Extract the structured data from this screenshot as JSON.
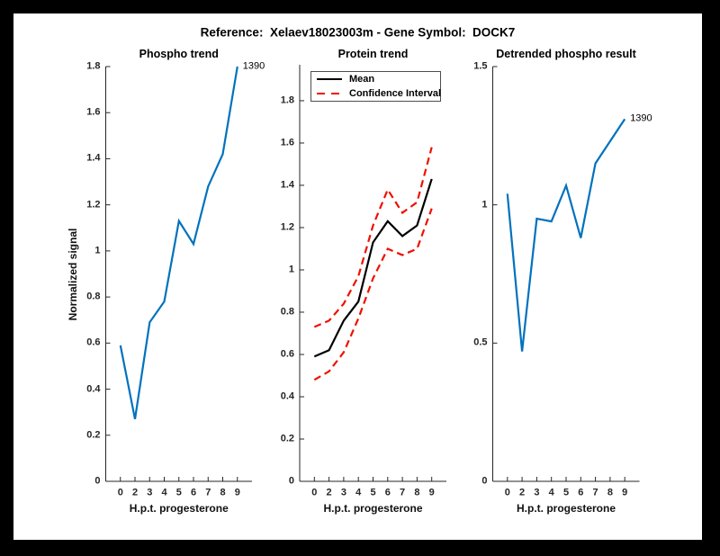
{
  "figure_title": "Reference:  Xelaev18023003m - Gene Symbol:  DOCK7",
  "colors": {
    "line_blue": "#0072BD",
    "line_red": "#EE1100",
    "line_black": "#000000",
    "axis_color": "#262626",
    "background": "#FFFFFF",
    "frame": "#000000"
  },
  "chart_data": [
    {
      "type": "line",
      "title": "Phospho trend",
      "xlabel": "H.p.t. progesterone",
      "ylabel": "Normalized signal",
      "categories": [
        "0",
        "2",
        "3",
        "4",
        "5",
        "6",
        "7",
        "8",
        "9"
      ],
      "ylim": [
        0,
        1.8
      ],
      "yticks": [
        0,
        0.2,
        0.4,
        0.6,
        0.8,
        1,
        1.2,
        1.4,
        1.6,
        1.8
      ],
      "ytick_labels": [
        "0",
        "0.2",
        "0.4",
        "0.6",
        "0.8",
        "1",
        "1.2",
        "1.4",
        "1.6",
        "1.8"
      ],
      "grid": false,
      "legend": null,
      "series": [
        {
          "name": "Phospho",
          "color": "#0072BD",
          "dash": false,
          "width": 2.2,
          "values": [
            0.59,
            0.27,
            0.69,
            0.78,
            1.13,
            1.03,
            1.28,
            1.42,
            1.8
          ]
        }
      ],
      "annotation": {
        "text": "1390",
        "series": 0,
        "index": 8
      }
    },
    {
      "type": "line",
      "title": "Protein trend",
      "xlabel": "H.p.t. progesterone",
      "ylabel": "",
      "categories": [
        "0",
        "2",
        "3",
        "4",
        "5",
        "6",
        "7",
        "8",
        "9"
      ],
      "ylim": [
        0,
        1.97
      ],
      "yticks": [
        0,
        0.2,
        0.4,
        0.6,
        0.8,
        1,
        1.2,
        1.4,
        1.6,
        1.8
      ],
      "ytick_labels": [
        "0",
        "0.2",
        "0.4",
        "0.6",
        "0.8",
        "1",
        "1.2",
        "1.4",
        "1.6",
        "1.8"
      ],
      "grid": false,
      "legend": {
        "position": "top-left",
        "entries": [
          {
            "label": "Mean",
            "color": "#000000",
            "dash": false
          },
          {
            "label": "Confidence Interval",
            "color": "#EE1100",
            "dash": true
          }
        ]
      },
      "series": [
        {
          "name": "Mean",
          "color": "#000000",
          "dash": false,
          "width": 2.2,
          "values": [
            0.59,
            0.62,
            0.76,
            0.85,
            1.13,
            1.23,
            1.16,
            1.21,
            1.43
          ]
        },
        {
          "name": "CI upper",
          "color": "#EE1100",
          "dash": true,
          "width": 2.2,
          "values": [
            0.73,
            0.76,
            0.84,
            0.97,
            1.21,
            1.38,
            1.27,
            1.32,
            1.58
          ]
        },
        {
          "name": "CI lower",
          "color": "#EE1100",
          "dash": true,
          "width": 2.2,
          "values": [
            0.48,
            0.52,
            0.61,
            0.77,
            0.96,
            1.1,
            1.07,
            1.1,
            1.29
          ]
        }
      ],
      "annotation": null
    },
    {
      "type": "line",
      "title": "Detrended phospho result",
      "xlabel": "H.p.t. progesterone",
      "ylabel": "",
      "categories": [
        "0",
        "2",
        "3",
        "4",
        "5",
        "6",
        "7",
        "8",
        "9"
      ],
      "ylim": [
        0,
        1.5
      ],
      "yticks": [
        0,
        0.5,
        1,
        1.5
      ],
      "ytick_labels": [
        "0",
        "0.5",
        "1",
        "1.5"
      ],
      "grid": false,
      "legend": null,
      "series": [
        {
          "name": "Detrended phospho",
          "color": "#0072BD",
          "dash": false,
          "width": 2.2,
          "values": [
            1.04,
            0.47,
            0.95,
            0.94,
            1.07,
            0.88,
            1.15,
            1.23,
            1.31
          ]
        }
      ],
      "annotation": {
        "text": "1390",
        "series": 0,
        "index": 8
      }
    }
  ]
}
